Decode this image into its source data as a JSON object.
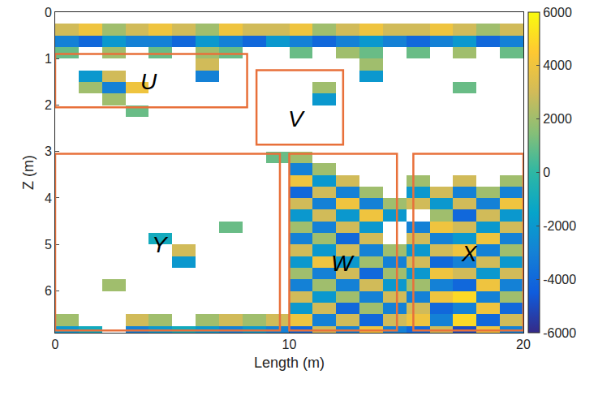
{
  "chart_data": {
    "type": "heatmap",
    "xlabel": "Length (m)",
    "ylabel": "Z (m)",
    "xlim": [
      0,
      20
    ],
    "xticks": [
      0,
      10,
      20
    ],
    "ylim": [
      6.9,
      0
    ],
    "yticks": [
      0,
      1,
      2,
      3,
      4,
      5,
      6
    ],
    "x": [
      0.5,
      1.5,
      2.5,
      3.5,
      4.5,
      5.5,
      6.5,
      7.5,
      8.5,
      9.5,
      10.5,
      11.5,
      12.5,
      13.5,
      14.5,
      15.5,
      16.5,
      17.5,
      18.5,
      19.5
    ],
    "y": [
      0.125,
      0.375,
      0.625,
      0.875,
      1.125,
      1.375,
      1.625,
      1.875,
      2.125,
      2.375,
      2.625,
      2.875,
      3.125,
      3.375,
      3.625,
      3.875,
      4.125,
      4.375,
      4.625,
      4.875,
      5.125,
      5.375,
      5.625,
      5.875,
      6.125,
      6.375,
      6.625,
      6.875
    ],
    "z": [
      [
        null,
        null,
        null,
        null,
        null,
        null,
        null,
        null,
        null,
        null,
        null,
        null,
        null,
        null,
        null,
        null,
        null,
        null,
        null,
        null
      ],
      [
        3000,
        4000,
        2000,
        3000,
        4000,
        3000,
        2000,
        4000,
        3000,
        3000,
        4000,
        2000,
        3000,
        4000,
        3000,
        3000,
        4000,
        3000,
        2000,
        3000
      ],
      [
        -3000,
        -4000,
        -2000,
        -3000,
        -3000,
        -4000,
        -2000,
        -3000,
        -4000,
        -2000,
        -3000,
        -4000,
        -3000,
        -2000,
        -3000,
        -4000,
        -3000,
        -2000,
        -4000,
        -3000
      ],
      [
        1000,
        null,
        2000,
        null,
        1000,
        null,
        2000,
        1000,
        null,
        null,
        1000,
        null,
        2000,
        1000,
        null,
        1000,
        null,
        2000,
        null,
        1000
      ],
      [
        null,
        null,
        null,
        null,
        null,
        null,
        3000,
        null,
        null,
        null,
        null,
        null,
        null,
        2000,
        null,
        null,
        null,
        null,
        null,
        null
      ],
      [
        null,
        -2000,
        3000,
        null,
        null,
        null,
        -3000,
        null,
        null,
        null,
        null,
        null,
        null,
        -2000,
        null,
        null,
        null,
        null,
        null,
        null
      ],
      [
        null,
        2000,
        -3000,
        4000,
        null,
        null,
        null,
        null,
        null,
        null,
        null,
        2000,
        null,
        null,
        null,
        null,
        null,
        1000,
        null,
        null
      ],
      [
        null,
        null,
        2000,
        null,
        null,
        null,
        null,
        null,
        null,
        null,
        null,
        -2000,
        null,
        null,
        null,
        null,
        null,
        null,
        null,
        null
      ],
      [
        null,
        null,
        null,
        1000,
        null,
        null,
        null,
        null,
        null,
        null,
        null,
        null,
        null,
        null,
        null,
        null,
        null,
        null,
        null,
        null
      ],
      [
        null,
        null,
        null,
        null,
        null,
        null,
        null,
        null,
        null,
        null,
        null,
        null,
        null,
        null,
        null,
        null,
        null,
        null,
        null,
        null
      ],
      [
        null,
        null,
        null,
        null,
        null,
        null,
        null,
        null,
        null,
        null,
        null,
        null,
        null,
        null,
        null,
        null,
        null,
        null,
        null,
        null
      ],
      [
        null,
        null,
        null,
        null,
        null,
        null,
        null,
        null,
        null,
        null,
        null,
        null,
        null,
        null,
        null,
        null,
        null,
        null,
        null,
        null
      ],
      [
        null,
        null,
        null,
        null,
        null,
        null,
        null,
        null,
        null,
        1000,
        2000,
        null,
        null,
        null,
        null,
        null,
        null,
        null,
        null,
        null
      ],
      [
        null,
        null,
        null,
        null,
        null,
        null,
        null,
        null,
        null,
        null,
        -3000,
        2000,
        null,
        null,
        null,
        null,
        null,
        null,
        null,
        null
      ],
      [
        null,
        null,
        null,
        null,
        null,
        null,
        null,
        null,
        null,
        null,
        4000,
        -2000,
        3000,
        null,
        null,
        2000,
        null,
        3000,
        null,
        2000
      ],
      [
        null,
        null,
        null,
        null,
        null,
        null,
        null,
        null,
        null,
        null,
        -4000,
        3000,
        -3000,
        2000,
        null,
        -2000,
        3000,
        -3000,
        2000,
        -3000
      ],
      [
        null,
        null,
        null,
        null,
        null,
        null,
        null,
        null,
        null,
        null,
        3000,
        -3000,
        4000,
        -3000,
        2000,
        3000,
        -2000,
        3000,
        -3000,
        4000
      ],
      [
        null,
        null,
        null,
        null,
        null,
        null,
        null,
        null,
        null,
        null,
        -2000,
        3000,
        -2000,
        4000,
        -2000,
        null,
        2000,
        -4000,
        3000,
        -2000
      ],
      [
        null,
        null,
        null,
        null,
        null,
        null,
        null,
        1000,
        null,
        null,
        2000,
        -3000,
        3000,
        -2000,
        null,
        -3000,
        4000,
        3000,
        -2000,
        3000
      ],
      [
        null,
        null,
        null,
        null,
        -1000,
        null,
        null,
        null,
        null,
        null,
        -3000,
        2000,
        -4000,
        3000,
        null,
        3000,
        -3000,
        -2000,
        4000,
        -3000
      ],
      [
        null,
        null,
        null,
        null,
        null,
        3000,
        null,
        null,
        null,
        null,
        3000,
        -2000,
        3000,
        -3000,
        2000,
        -2000,
        3000,
        4000,
        -3000,
        2000
      ],
      [
        null,
        null,
        null,
        null,
        null,
        -2000,
        null,
        null,
        null,
        null,
        -2000,
        4000,
        -2000,
        2000,
        -3000,
        3000,
        -4000,
        -3000,
        3000,
        -2000
      ],
      [
        null,
        null,
        null,
        null,
        null,
        null,
        null,
        null,
        null,
        null,
        2000,
        -3000,
        3000,
        -4000,
        2000,
        -2000,
        4000,
        3000,
        -2000,
        3000
      ],
      [
        null,
        null,
        2000,
        null,
        null,
        null,
        null,
        null,
        null,
        null,
        -3000,
        2000,
        -3000,
        3000,
        -2000,
        2000,
        -3000,
        -4000,
        4000,
        -3000
      ],
      [
        null,
        null,
        null,
        null,
        null,
        null,
        null,
        null,
        null,
        null,
        3000,
        -2000,
        2000,
        -3000,
        3000,
        -3000,
        4000,
        5000,
        -3000,
        2000
      ],
      [
        null,
        null,
        null,
        null,
        null,
        null,
        null,
        null,
        null,
        null,
        -2000,
        3000,
        -4000,
        2000,
        -3000,
        3000,
        -4000,
        -3000,
        4000,
        -4000
      ],
      [
        2000,
        null,
        null,
        3000,
        2000,
        null,
        2000,
        3000,
        2000,
        3000,
        4000,
        -3000,
        3000,
        -4000,
        3000,
        4000,
        -3000,
        5000,
        -4000,
        3000
      ],
      [
        -2000,
        -1000,
        null,
        -3000,
        -2000,
        -1000,
        -2000,
        -3000,
        -2000,
        -3000,
        -4000,
        3000,
        -3000,
        4000,
        -3000,
        -4000,
        3000,
        -5000,
        4000,
        -3000
      ]
    ],
    "colorbar": {
      "range": [
        -6000,
        6000
      ],
      "ticks": [
        -6000,
        -4000,
        -2000,
        0,
        2000,
        4000,
        6000
      ]
    },
    "regions": [
      {
        "label": "U",
        "x": [
          0,
          8.2
        ],
        "z": [
          0.9,
          2.05
        ],
        "at": [
          4,
          1.5
        ]
      },
      {
        "label": "V",
        "x": [
          8.6,
          12.3
        ],
        "z": [
          1.25,
          2.85
        ],
        "at": [
          10.3,
          2.3
        ]
      },
      {
        "label": "Y",
        "x": [
          0,
          9.6
        ],
        "z": [
          3.05,
          6.85
        ],
        "at": [
          4.5,
          5
        ]
      },
      {
        "label": "W",
        "x": [
          10,
          14.6
        ],
        "z": [
          3.05,
          6.85
        ],
        "at": [
          12.3,
          5.4
        ]
      },
      {
        "label": "X",
        "x": [
          15.3,
          20
        ],
        "z": [
          3.05,
          6.85
        ],
        "at": [
          17.7,
          5.2
        ]
      }
    ]
  }
}
